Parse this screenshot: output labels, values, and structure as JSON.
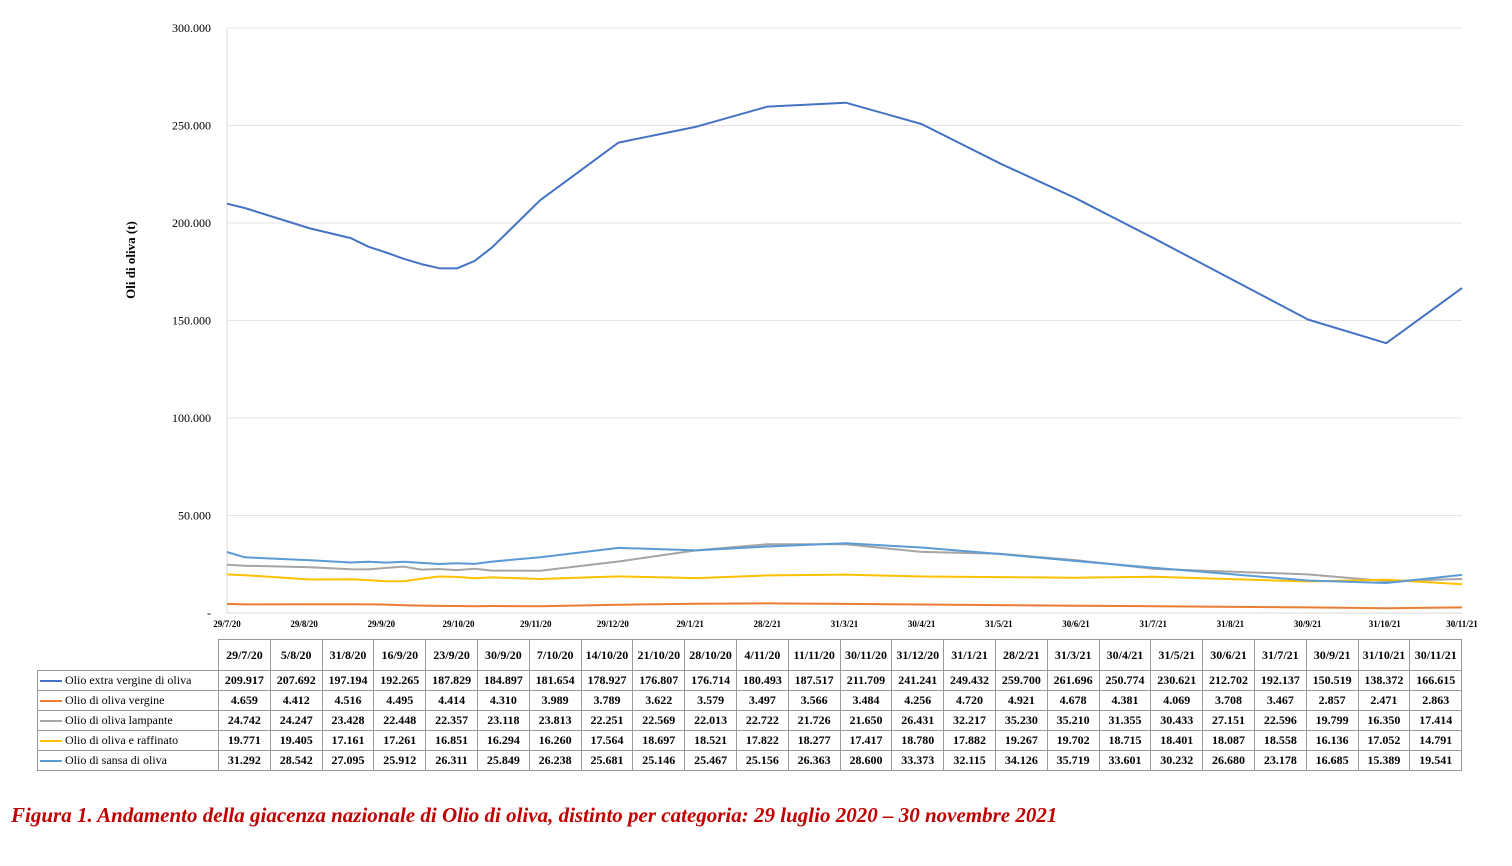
{
  "chart_data": {
    "type": "line",
    "title": "",
    "xlabel": "",
    "ylabel": "Oli di oliva (t)",
    "ylim": [
      0,
      300000
    ],
    "y_ticks": [
      "-",
      "50.000",
      "100.000",
      "150.000",
      "200.000",
      "250.000",
      "300.000"
    ],
    "x_tick_labels": [
      "29/7/20",
      "29/8/20",
      "29/9/20",
      "29/10/20",
      "29/11/20",
      "29/12/20",
      "29/1/21",
      "28/2/21",
      "31/3/21",
      "30/4/21",
      "31/5/21",
      "30/6/21",
      "31/7/21",
      "31/8/21",
      "30/9/21",
      "31/10/21",
      "30/11/21"
    ],
    "x": [
      "2020-07-29",
      "2020-08-05",
      "2020-08-31",
      "2020-09-16",
      "2020-09-23",
      "2020-09-30",
      "2020-10-07",
      "2020-10-14",
      "2020-10-21",
      "2020-10-28",
      "2020-11-04",
      "2020-11-11",
      "2020-11-30",
      "2020-12-31",
      "2021-01-31",
      "2021-02-28",
      "2021-03-31",
      "2021-04-30",
      "2021-05-31",
      "2021-06-30",
      "2021-07-31",
      "2021-09-30",
      "2021-10-31",
      "2021-11-30"
    ],
    "grid": true,
    "legend": "table-below",
    "series": [
      {
        "name": "Olio extra vergine di oliva",
        "color": "#4472c4",
        "values": [
          209917,
          207692,
          197194,
          192265,
          187829,
          184897,
          181654,
          178927,
          176807,
          176714,
          180493,
          187517,
          211709,
          241241,
          249432,
          259700,
          261696,
          250774,
          230621,
          212702,
          192137,
          150519,
          138372,
          166615
        ]
      },
      {
        "name": "Olio di oliva vergine",
        "color": "#ed7d31",
        "values": [
          4659,
          4412,
          4516,
          4495,
          4414,
          4310,
          3989,
          3789,
          3622,
          3579,
          3497,
          3566,
          3484,
          4256,
          4720,
          4921,
          4678,
          4381,
          4069,
          3708,
          3467,
          2857,
          2471,
          2863
        ]
      },
      {
        "name": "Olio di oliva lampante",
        "color": "#a5a5a5",
        "values": [
          24742,
          24247,
          23428,
          22448,
          22357,
          23118,
          23813,
          22251,
          22569,
          22013,
          22722,
          21726,
          21650,
          26431,
          32217,
          35230,
          35210,
          31355,
          30433,
          27151,
          22596,
          19799,
          16350,
          17414
        ]
      },
      {
        "name": "Olio di oliva e raffinato",
        "color": "#ffc000",
        "values": [
          19771,
          19405,
          17161,
          17261,
          16851,
          16294,
          16260,
          17564,
          18697,
          18521,
          17822,
          18277,
          17417,
          18780,
          17882,
          19267,
          19702,
          18715,
          18401,
          18087,
          18558,
          16136,
          17052,
          14791
        ]
      },
      {
        "name": "Olio di sansa di oliva",
        "color": "#5b9bd5",
        "values": [
          31292,
          28542,
          27095,
          25912,
          26311,
          25849,
          26238,
          25681,
          25146,
          25467,
          25156,
          26363,
          28600,
          33373,
          32115,
          34126,
          35719,
          33601,
          30232,
          26680,
          23178,
          16685,
          15389,
          19541
        ]
      }
    ]
  },
  "table": {
    "headers": [
      "29/7/20",
      "5/8/20",
      "31/8/20",
      "16/9/20",
      "23/9/20",
      "30/9/20",
      "7/10/20",
      "14/10/20",
      "21/10/20",
      "28/10/20",
      "4/11/20",
      "11/11/20",
      "30/11/20",
      "31/12/20",
      "31/1/21",
      "28/2/21",
      "31/3/21",
      "30/4/21",
      "31/5/21",
      "30/6/21",
      "31/7/21",
      "30/9/21",
      "31/10/21",
      "30/11/21"
    ],
    "rows": [
      {
        "label": "Olio extra vergine di oliva",
        "color": "#4472c4",
        "cells": [
          "209.917",
          "207.692",
          "197.194",
          "192.265",
          "187.829",
          "184.897",
          "181.654",
          "178.927",
          "176.807",
          "176.714",
          "180.493",
          "187.517",
          "211.709",
          "241.241",
          "249.432",
          "259.700",
          "261.696",
          "250.774",
          "230.621",
          "212.702",
          "192.137",
          "150.519",
          "138.372",
          "166.615"
        ]
      },
      {
        "label": "Olio di oliva vergine",
        "color": "#ed7d31",
        "cells": [
          "4.659",
          "4.412",
          "4.516",
          "4.495",
          "4.414",
          "4.310",
          "3.989",
          "3.789",
          "3.622",
          "3.579",
          "3.497",
          "3.566",
          "3.484",
          "4.256",
          "4.720",
          "4.921",
          "4.678",
          "4.381",
          "4.069",
          "3.708",
          "3.467",
          "2.857",
          "2.471",
          "2.863"
        ]
      },
      {
        "label": "Olio di oliva lampante",
        "color": "#a5a5a5",
        "cells": [
          "24.742",
          "24.247",
          "23.428",
          "22.448",
          "22.357",
          "23.118",
          "23.813",
          "22.251",
          "22.569",
          "22.013",
          "22.722",
          "21.726",
          "21.650",
          "26.431",
          "32.217",
          "35.230",
          "35.210",
          "31.355",
          "30.433",
          "27.151",
          "22.596",
          "19.799",
          "16.350",
          "17.414"
        ]
      },
      {
        "label": "Olio di oliva e raffinato",
        "color": "#ffc000",
        "cells": [
          "19.771",
          "19.405",
          "17.161",
          "17.261",
          "16.851",
          "16.294",
          "16.260",
          "17.564",
          "18.697",
          "18.521",
          "17.822",
          "18.277",
          "17.417",
          "18.780",
          "17.882",
          "19.267",
          "19.702",
          "18.715",
          "18.401",
          "18.087",
          "18.558",
          "16.136",
          "17.052",
          "14.791"
        ]
      },
      {
        "label": "Olio di sansa di oliva",
        "color": "#5b9bd5",
        "cells": [
          "31.292",
          "28.542",
          "27.095",
          "25.912",
          "26.311",
          "25.849",
          "26.238",
          "25.681",
          "25.146",
          "25.467",
          "25.156",
          "26.363",
          "28.600",
          "33.373",
          "32.115",
          "34.126",
          "35.719",
          "33.601",
          "30.232",
          "26.680",
          "23.178",
          "16.685",
          "15.389",
          "19.541"
        ]
      }
    ]
  },
  "caption": "Figura 1. Andamento della giacenza nazionale di Olio di oliva, distinto per categoria: 29 luglio 2020 – 30 novembre 2021"
}
